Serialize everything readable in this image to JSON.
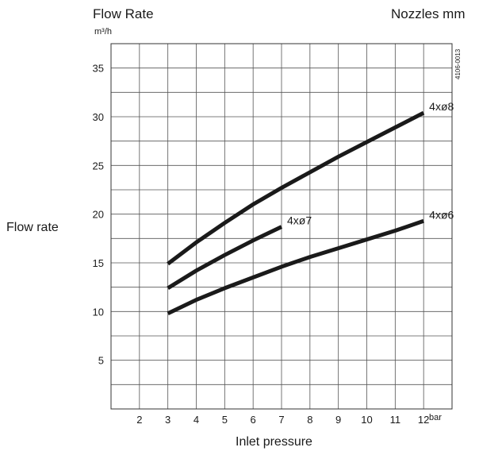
{
  "header": {
    "left_title": "Flow Rate",
    "right_title": "Nozzles mm",
    "unit": "m³/h",
    "code": "4106-0013"
  },
  "chart_data": {
    "type": "line",
    "ylabel": "Flow rate",
    "xlabel": "Inlet pressure",
    "x_unit": "bar",
    "xlim": [
      1,
      13
    ],
    "ylim": [
      0,
      37.5
    ],
    "x_ticks": [
      2,
      3,
      4,
      5,
      6,
      7,
      8,
      9,
      10,
      11,
      12
    ],
    "y_ticks": [
      5,
      10,
      15,
      20,
      25,
      30,
      35
    ],
    "grid": true,
    "series": [
      {
        "name": "4xø8",
        "x": [
          3,
          4,
          5,
          6,
          7,
          8,
          9,
          10,
          11,
          12
        ],
        "y": [
          14.9,
          17.1,
          19.1,
          21.0,
          22.7,
          24.3,
          25.9,
          27.4,
          28.9,
          30.4
        ]
      },
      {
        "name": "4xø7",
        "x": [
          3,
          4,
          5,
          6,
          7
        ],
        "y": [
          12.4,
          14.2,
          15.8,
          17.3,
          18.7
        ]
      },
      {
        "name": "4xø6",
        "x": [
          3,
          4,
          5,
          6,
          7,
          8,
          9,
          10,
          11,
          12
        ],
        "y": [
          9.8,
          11.2,
          12.4,
          13.5,
          14.6,
          15.6,
          16.5,
          17.4,
          18.3,
          19.3
        ]
      }
    ]
  }
}
